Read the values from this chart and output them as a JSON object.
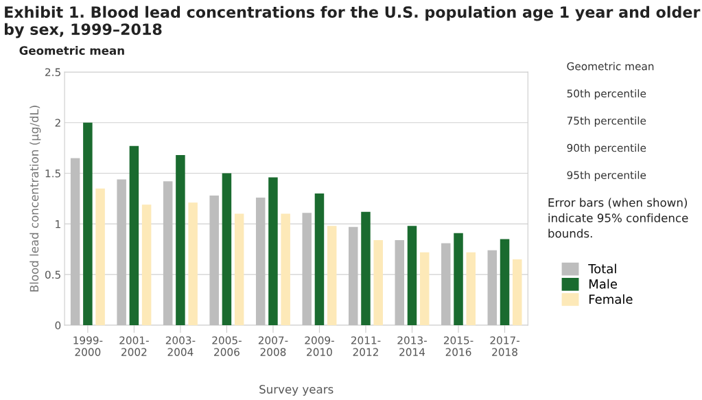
{
  "chart_data": {
    "type": "bar",
    "title": "Exhibit 1. Blood lead concentrations for the U.S. population age 1 year and older\nby sex, 1999–2018",
    "subtitle": "Geometric mean",
    "xlabel": "Survey years",
    "ylabel": "Blood lead concentration (µg/dL)",
    "categories": [
      "1999-\n2000",
      "2001-\n2002",
      "2003-\n2004",
      "2005-\n2006",
      "2007-\n2008",
      "2009-\n2010",
      "2011-\n2012",
      "2013-\n2014",
      "2015-\n2016",
      "2017-\n2018"
    ],
    "series": [
      {
        "name": "Total",
        "color": "#bdbdbd",
        "values": [
          1.65,
          1.44,
          1.42,
          1.28,
          1.26,
          1.11,
          0.97,
          0.84,
          0.81,
          0.74
        ]
      },
      {
        "name": "Male",
        "color": "#1a6b2f",
        "values": [
          2.0,
          1.77,
          1.68,
          1.5,
          1.46,
          1.3,
          1.12,
          0.98,
          0.91,
          0.85
        ]
      },
      {
        "name": "Female",
        "color": "#fde9b8",
        "values": [
          1.35,
          1.19,
          1.21,
          1.1,
          1.1,
          0.98,
          0.84,
          0.72,
          0.72,
          0.65
        ]
      }
    ],
    "ylim": [
      0,
      2.5
    ],
    "yticks": [
      0,
      0.5,
      1,
      1.5,
      2,
      2.5
    ],
    "grid": "y",
    "legend": "right",
    "annotations": [
      "Geometric mean",
      "50th percentile",
      "75th percentile",
      "90th percentile",
      "95th percentile",
      "Error bars (when shown) indicate 95% confidence bounds."
    ]
  }
}
